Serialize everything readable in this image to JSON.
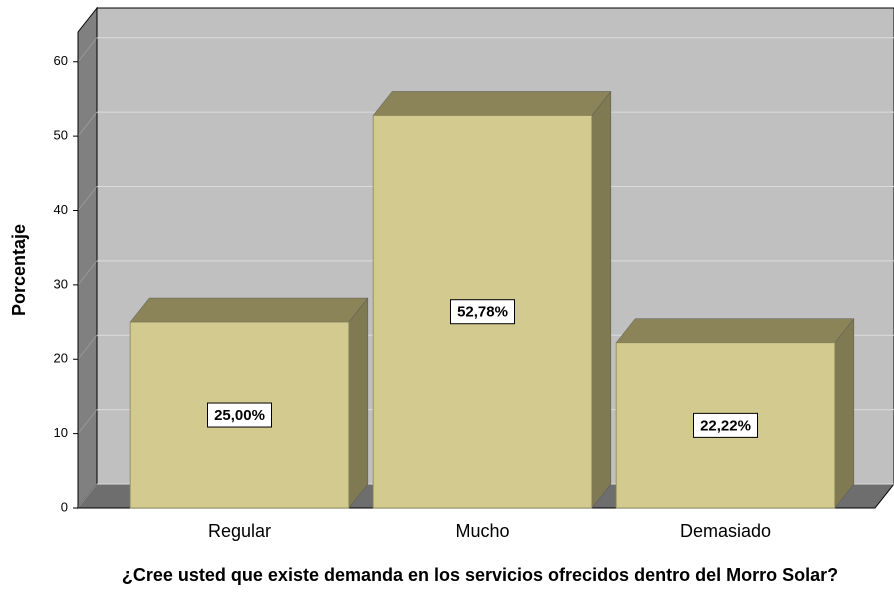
{
  "chart_data": {
    "type": "bar3d",
    "x_label": "¿Cree usted que existe demanda en los servicios ofrecidos dentro del Morro Solar?",
    "y_label": "Porcentaje",
    "categories": [
      "Regular",
      "Mucho",
      "Demasiado"
    ],
    "values": [
      25.0,
      52.78,
      22.22
    ],
    "value_labels": [
      "25,00%",
      "52,78%",
      "22,22%"
    ],
    "color": "#d2ca8f",
    "ylim": [
      0,
      64
    ],
    "yticks": [
      0,
      10,
      20,
      30,
      40,
      50,
      60
    ],
    "grid": true
  }
}
